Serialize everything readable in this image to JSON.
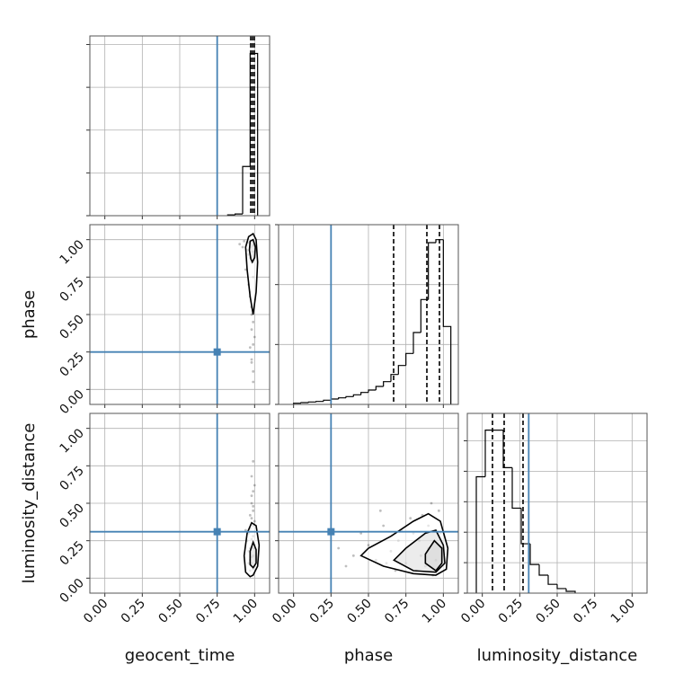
{
  "chart_data": {
    "type": "corner",
    "parameters": [
      "geocent_time",
      "phase",
      "luminosity_distance"
    ],
    "truths": [
      0.75,
      0.25,
      0.31
    ],
    "truth_color": "#4682b4",
    "grid": true,
    "xlim": [
      -0.1,
      1.1
    ],
    "xticks": [
      {
        "value": 0,
        "label": "0.00"
      },
      {
        "value": 0.25,
        "label": "0.25"
      },
      {
        "value": 0.5,
        "label": "0.50"
      },
      {
        "value": 0.75,
        "label": "0.75"
      },
      {
        "value": 1,
        "label": "1.00"
      }
    ],
    "histograms": [
      {
        "bins": [
          0.82,
          0.87,
          0.92,
          0.97,
          1.02
        ],
        "counts": [
          0.02,
          0.04,
          1.15,
          3.79
        ],
        "ylim": [
          0,
          4.2
        ],
        "yticks": [
          0,
          1,
          2,
          3,
          4
        ],
        "quantiles": [
          0.974,
          0.986,
          0.998
        ]
      },
      {
        "bins": [
          0.0,
          0.05,
          0.1,
          0.15,
          0.2,
          0.25,
          0.3,
          0.35,
          0.4,
          0.45,
          0.5,
          0.55,
          0.6,
          0.65,
          0.7,
          0.75,
          0.8,
          0.85,
          0.9,
          0.95,
          1.0,
          1.05
        ],
        "counts": [
          0.02,
          0.03,
          0.04,
          0.05,
          0.07,
          0.09,
          0.11,
          0.13,
          0.16,
          0.2,
          0.24,
          0.3,
          0.38,
          0.5,
          0.65,
          0.85,
          1.2,
          1.75,
          2.7,
          2.75,
          1.3
        ],
        "ylim": [
          0,
          3.0
        ],
        "yticks": [
          0,
          1,
          2,
          3
        ],
        "quantiles": [
          0.668,
          0.89,
          0.974
        ]
      },
      {
        "bins": [
          -0.04,
          0.02,
          0.08,
          0.14,
          0.2,
          0.26,
          0.32,
          0.38,
          0.44,
          0.5,
          0.56,
          0.62
        ],
        "counts": [
          3.82,
          5.35,
          5.35,
          4.12,
          2.79,
          1.62,
          0.94,
          0.59,
          0.29,
          0.15,
          0.06
        ],
        "ylim": [
          0,
          5.9
        ],
        "yticks": [
          0,
          1,
          2,
          3,
          4,
          5
        ],
        "quantiles": [
          0.068,
          0.146,
          0.272
        ]
      }
    ],
    "scatter": [
      {
        "x": [
          0.97,
          0.99,
          0.95,
          0.98,
          1.0,
          0.96,
          0.93,
          0.99,
          0.97,
          0.98,
          0.94,
          0.99,
          1.0,
          0.97,
          0.96,
          0.98,
          0.99,
          0.92,
          0.98,
          0.99,
          0.97,
          1.0,
          0.95,
          0.99,
          0.98,
          0.96,
          0.99,
          0.98,
          0.9,
          0.97
        ],
        "y": [
          0.95,
          0.92,
          0.98,
          0.85,
          0.97,
          0.9,
          0.99,
          0.75,
          0.62,
          0.55,
          0.8,
          0.45,
          0.35,
          0.28,
          0.7,
          0.2,
          0.12,
          0.95,
          0.4,
          0.05,
          0.88,
          0.6,
          0.93,
          0.3,
          0.5,
          0.98,
          0.96,
          0.18,
          0.97,
          0.65
        ],
        "contours": [
          {
            "x": [
              0.99,
              1.01,
              1.02,
              1.01,
              0.99,
              0.96,
              0.94,
              0.95,
              0.97,
              0.99
            ],
            "y": [
              0.5,
              0.65,
              0.85,
              1.0,
              1.04,
              1.02,
              0.95,
              0.8,
              0.62,
              0.5
            ]
          },
          {
            "x": [
              0.985,
              1.0,
              1.005,
              0.99,
              0.97,
              0.965,
              0.975,
              0.985
            ],
            "y": [
              0.85,
              0.88,
              0.95,
              1.0,
              0.99,
              0.93,
              0.87,
              0.85
            ]
          }
        ]
      },
      {
        "x": [
          0.98,
          0.99,
          0.97,
          1.0,
          0.96,
          0.99,
          0.98,
          0.95,
          0.99,
          1.0,
          0.97,
          0.98,
          0.99,
          0.96,
          1.0,
          0.98,
          0.97,
          0.99,
          0.94,
          0.98,
          0.99,
          1.0,
          0.97,
          0.98,
          0.99,
          0.96,
          0.98,
          0.99,
          0.97,
          0.99
        ],
        "y": [
          0.1,
          0.15,
          0.2,
          0.08,
          0.3,
          0.45,
          0.55,
          0.25,
          0.35,
          0.62,
          0.05,
          0.4,
          0.78,
          0.18,
          0.22,
          0.5,
          0.12,
          0.28,
          0.32,
          0.68,
          0.06,
          0.38,
          0.42,
          0.14,
          0.58,
          0.1,
          0.26,
          0.48,
          0.33,
          0.2
        ],
        "contours": [
          {
            "x": [
              0.99,
              1.02,
              1.03,
              1.01,
              0.98,
              0.95,
              0.93,
              0.94,
              0.97
            ],
            "y": [
              0.02,
              0.08,
              0.22,
              0.35,
              0.37,
              0.3,
              0.15,
              0.04,
              0.01
            ]
          },
          {
            "x": [
              0.99,
              1.01,
              1.01,
              0.99,
              0.97,
              0.97
            ],
            "y": [
              0.07,
              0.1,
              0.19,
              0.24,
              0.18,
              0.09
            ]
          }
        ]
      },
      {
        "x": [
          0.95,
          0.9,
          0.85,
          0.8,
          0.75,
          0.7,
          0.65,
          0.6,
          0.55,
          0.5,
          0.45,
          0.4,
          0.35,
          0.3,
          0.97,
          0.92,
          0.88,
          0.82,
          0.78,
          0.72,
          0.68,
          0.62,
          0.98,
          0.93,
          0.86,
          0.99,
          0.9,
          0.58,
          0.96,
          0.84
        ],
        "y": [
          0.12,
          0.2,
          0.15,
          0.3,
          0.1,
          0.25,
          0.18,
          0.35,
          0.12,
          0.22,
          0.3,
          0.15,
          0.08,
          0.2,
          0.45,
          0.5,
          0.08,
          0.05,
          0.4,
          0.32,
          0.05,
          0.1,
          0.3,
          0.02,
          0.42,
          0.2,
          0.35,
          0.45,
          0.05,
          0.25
        ],
        "contours": [
          {
            "x": [
              0.45,
              0.6,
              0.8,
              0.95,
              1.02,
              1.03,
              0.98,
              0.9,
              0.8,
              0.65,
              0.5
            ],
            "y": [
              0.15,
              0.08,
              0.03,
              0.02,
              0.06,
              0.2,
              0.38,
              0.43,
              0.38,
              0.28,
              0.2
            ]
          },
          {
            "x": [
              0.67,
              0.8,
              0.95,
              1.01,
              1.0,
              0.95,
              0.88,
              0.75
            ],
            "y": [
              0.12,
              0.05,
              0.04,
              0.1,
              0.22,
              0.32,
              0.3,
              0.2
            ]
          },
          {
            "x": [
              0.88,
              0.95,
              0.99,
              0.99,
              0.94,
              0.88
            ],
            "y": [
              0.1,
              0.05,
              0.1,
              0.2,
              0.25,
              0.16
            ]
          }
        ]
      }
    ]
  }
}
